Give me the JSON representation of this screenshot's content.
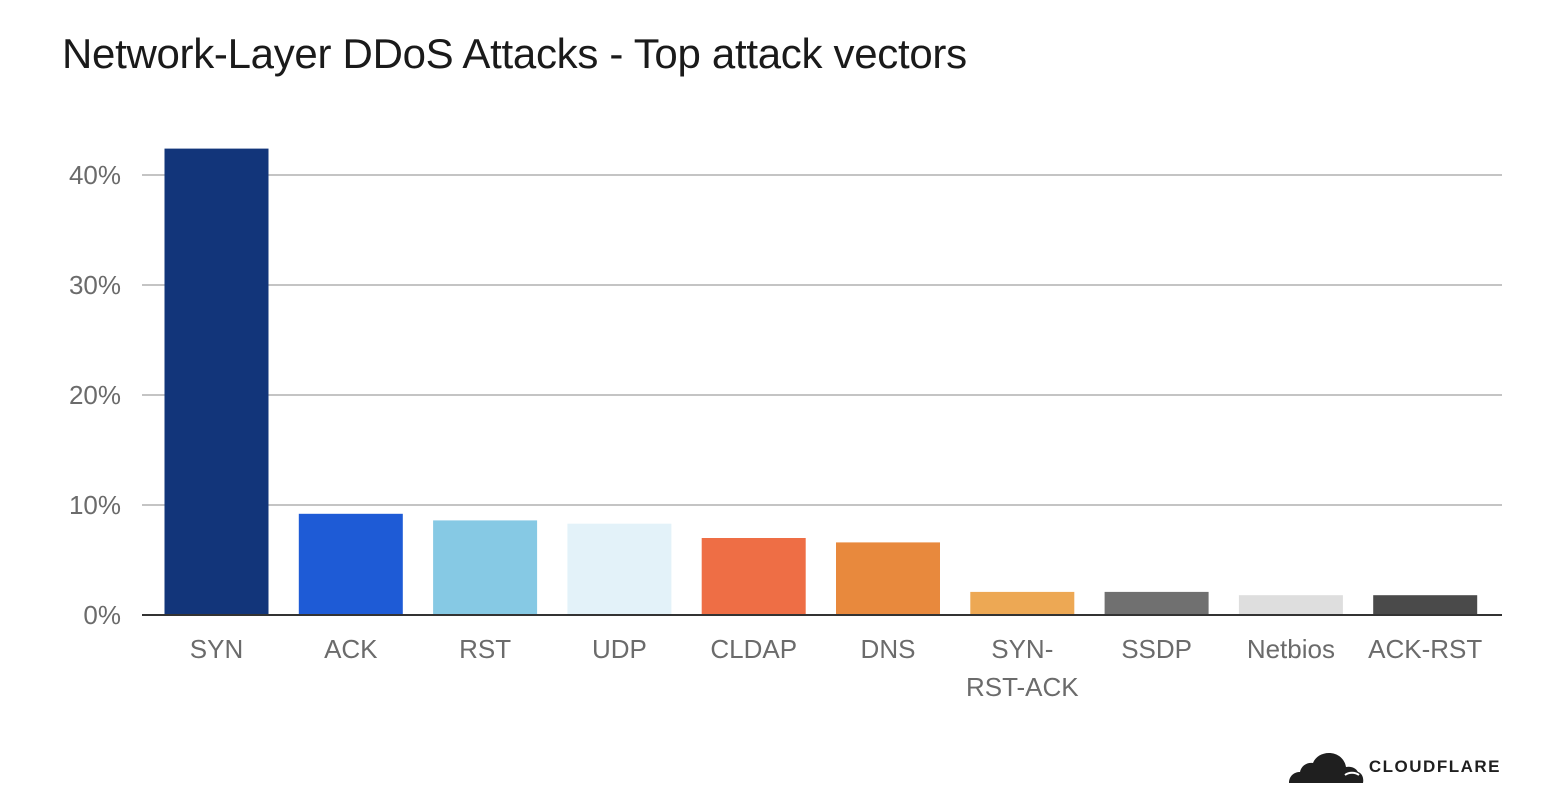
{
  "chart_data": {
    "type": "bar",
    "title": "Network-Layer DDoS Attacks - Top attack vectors",
    "xlabel": "",
    "ylabel": "",
    "ylim": [
      0,
      43
    ],
    "yticks": [
      0,
      10,
      20,
      30,
      40
    ],
    "ytick_labels": [
      "0%",
      "10%",
      "20%",
      "30%",
      "40%"
    ],
    "categories": [
      "SYN",
      "ACK",
      "RST",
      "UDP",
      "CLDAP",
      "DNS",
      "SYN-RST-ACK",
      "SSDP",
      "Netbios",
      "ACK-RST"
    ],
    "category_label_lines": [
      [
        "SYN"
      ],
      [
        "ACK"
      ],
      [
        "RST"
      ],
      [
        "UDP"
      ],
      [
        "CLDAP"
      ],
      [
        "DNS"
      ],
      [
        "SYN-",
        "RST-ACK"
      ],
      [
        "SSDP"
      ],
      [
        "Netbios"
      ],
      [
        "ACK-RST"
      ]
    ],
    "values": [
      42.4,
      9.2,
      8.6,
      8.3,
      7.0,
      6.6,
      2.1,
      2.1,
      1.8,
      1.8
    ],
    "colors": [
      "#12357a",
      "#1e5bd6",
      "#86c9e4",
      "#e3f2f9",
      "#ee6e45",
      "#e8893d",
      "#eda854",
      "#707070",
      "#dedede",
      "#4a4a4a"
    ],
    "grid": true
  },
  "logo": {
    "text": "CLOUDFLARE"
  }
}
